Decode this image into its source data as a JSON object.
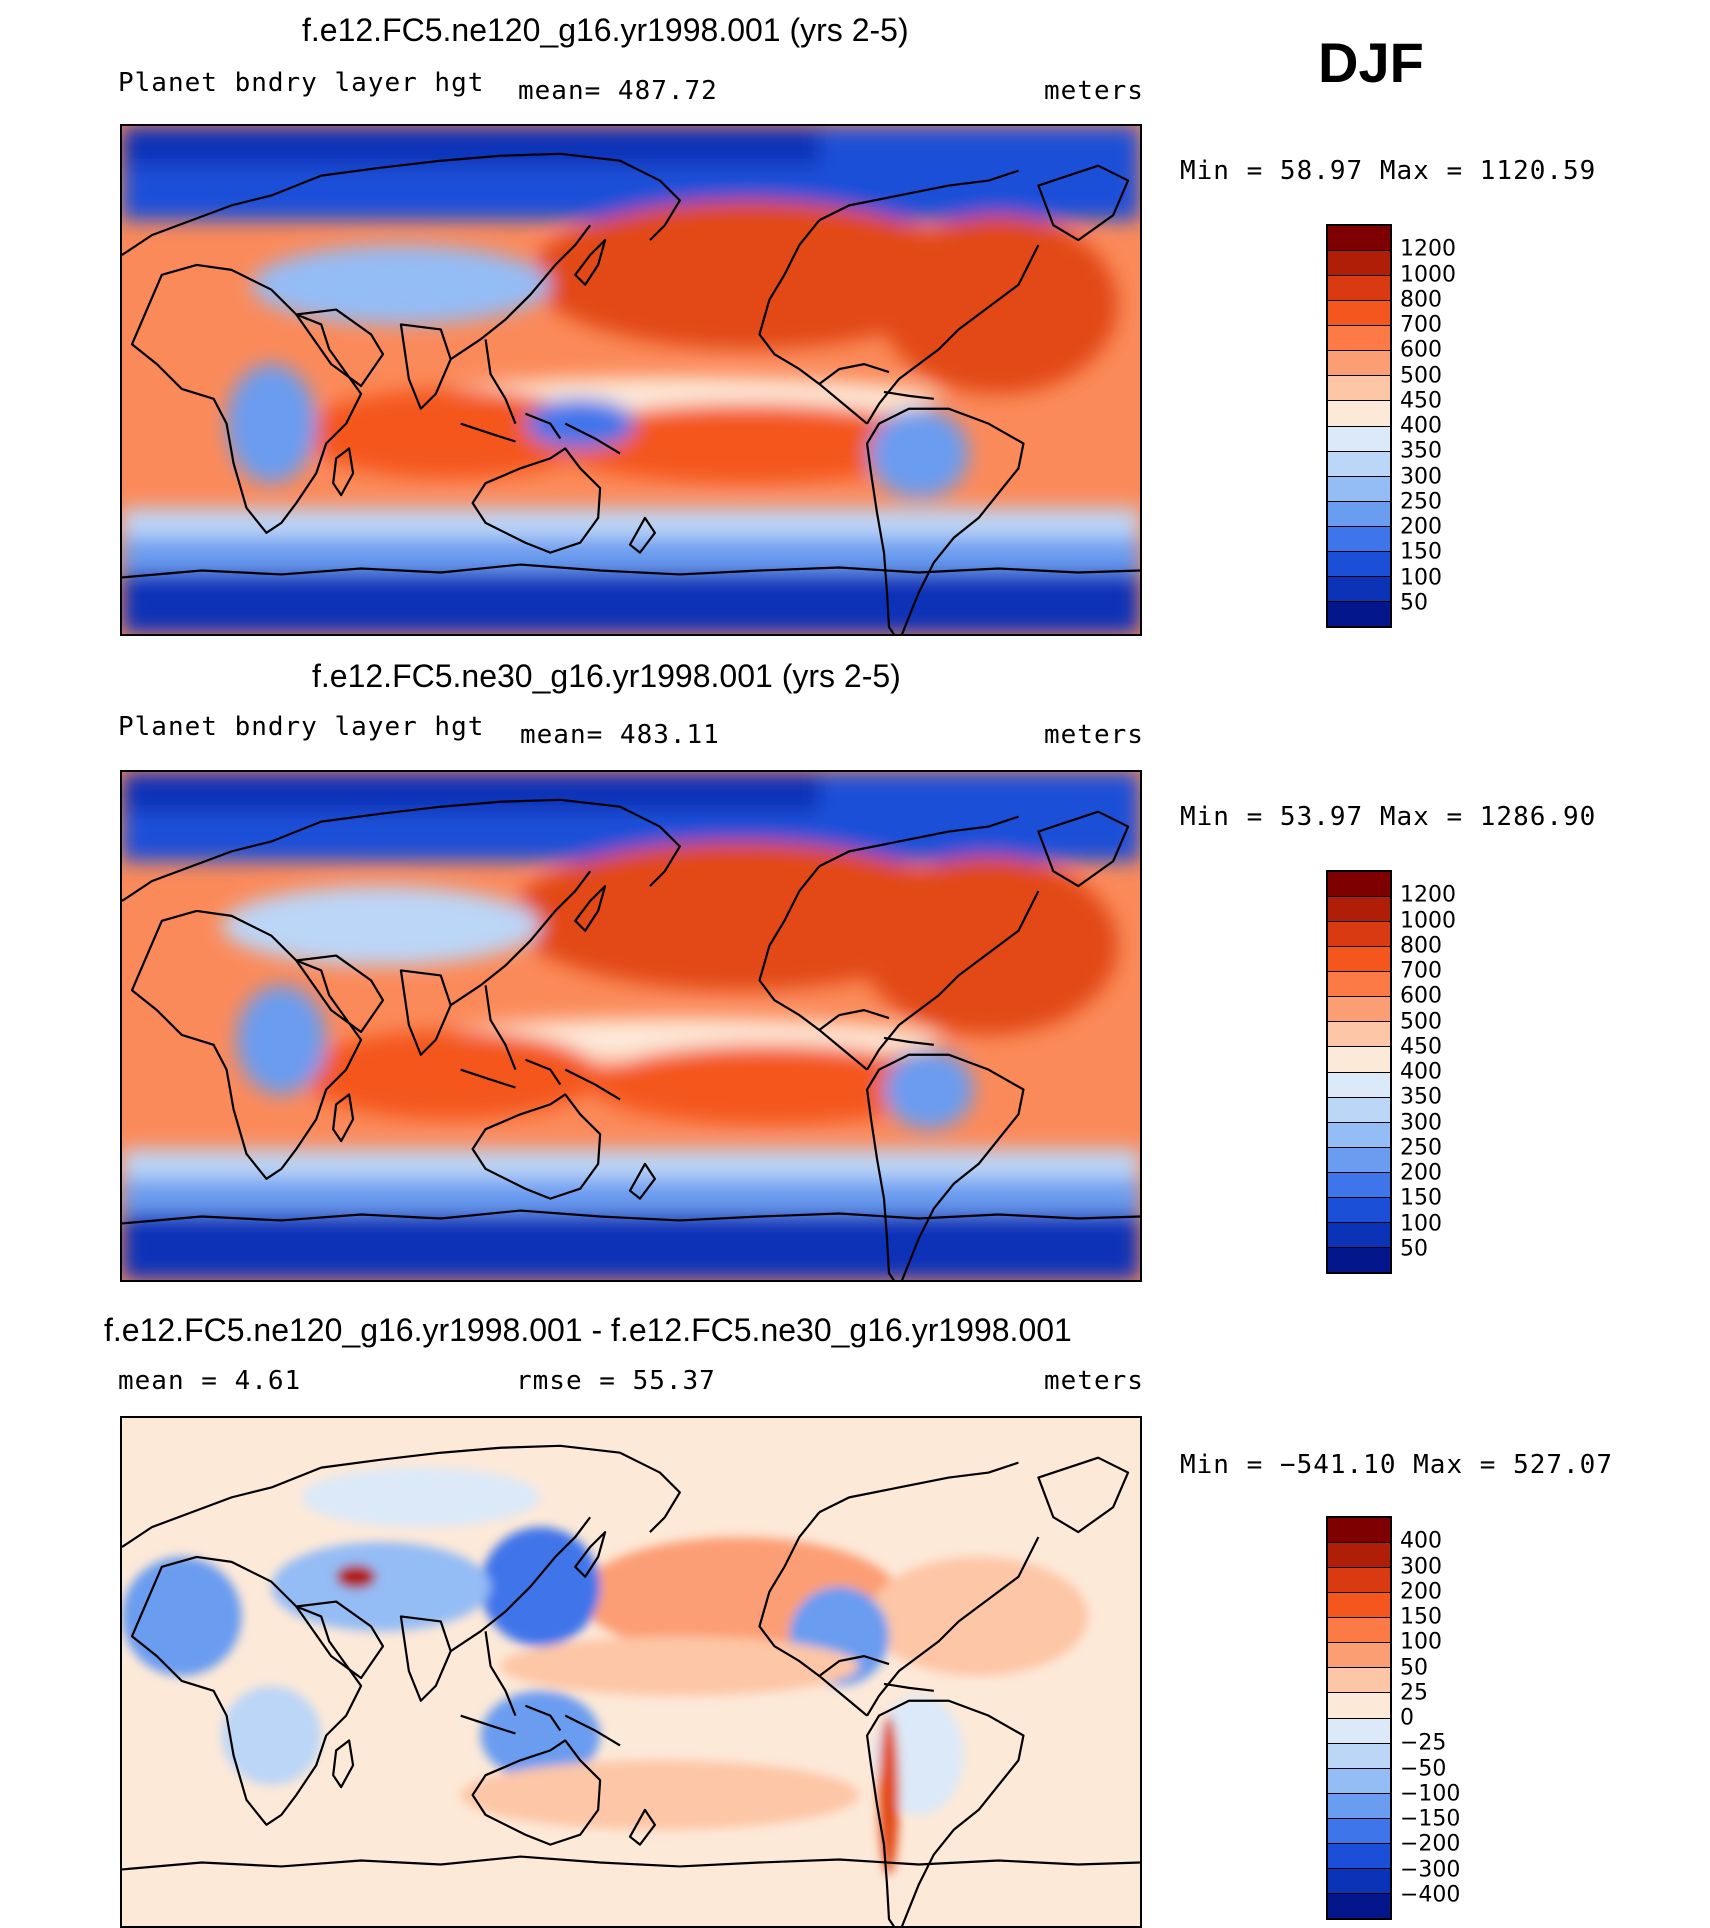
{
  "season": "DJF",
  "panels": [
    {
      "title": "f.e12.FC5.ne120_g16.yr1998.001 (yrs 2-5)",
      "left_label": "Planet bndry layer hgt",
      "center_label": "mean=  487.72",
      "right_label": "meters",
      "minmax": "Min =    58.97 Max = 1120.59",
      "colorbar_labels": [
        "1200",
        "1000",
        "800",
        "700",
        "600",
        "500",
        "450",
        "400",
        "350",
        "300",
        "250",
        "200",
        "150",
        "100",
        "50"
      ],
      "colors": [
        "#7f0000",
        "#b01e08",
        "#d93a12",
        "#f4561e",
        "#fb7a46",
        "#fc9e74",
        "#fdc6a6",
        "#fde9d8",
        "#dbe9f8",
        "#bcd6f7",
        "#94bcf5",
        "#6a9cf0",
        "#3f75ea",
        "#1c4fd8",
        "#0b33b8",
        "#04168c"
      ]
    },
    {
      "title": "f.e12.FC5.ne30_g16.yr1998.001 (yrs 2-5)",
      "left_label": "Planet bndry layer hgt",
      "center_label": "mean=  483.11",
      "right_label": "meters",
      "minmax": "Min =   53.97 Max = 1286.90",
      "colorbar_labels": [
        "1200",
        "1000",
        "800",
        "700",
        "600",
        "500",
        "450",
        "400",
        "350",
        "300",
        "250",
        "200",
        "150",
        "100",
        "50"
      ],
      "colors": [
        "#7f0000",
        "#b01e08",
        "#d93a12",
        "#f4561e",
        "#fb7a46",
        "#fc9e74",
        "#fdc6a6",
        "#fde9d8",
        "#dbe9f8",
        "#bcd6f7",
        "#94bcf5",
        "#6a9cf0",
        "#3f75ea",
        "#1c4fd8",
        "#0b33b8",
        "#04168c"
      ]
    },
    {
      "title": "f.e12.FC5.ne120_g16.yr1998.001 - f.e12.FC5.ne30_g16.yr1998.001",
      "left_label": "mean =    4.61",
      "center_label": "rmse =   55.37",
      "right_label": "meters",
      "minmax": "Min = −541.10 Max = 527.07",
      "colorbar_labels": [
        "400",
        "300",
        "200",
        "150",
        "100",
        "50",
        "25",
        "0",
        "−25",
        "−50",
        "−100",
        "−150",
        "−200",
        "−300",
        "−400"
      ],
      "colors": [
        "#7f0000",
        "#b01e08",
        "#d93a12",
        "#f4561e",
        "#fb7a46",
        "#fc9e74",
        "#fdc6a6",
        "#fde9d8",
        "#dbe9f8",
        "#bcd6f7",
        "#94bcf5",
        "#6a9cf0",
        "#3f75ea",
        "#1c4fd8",
        "#0b33b8",
        "#04168c"
      ]
    }
  ]
}
